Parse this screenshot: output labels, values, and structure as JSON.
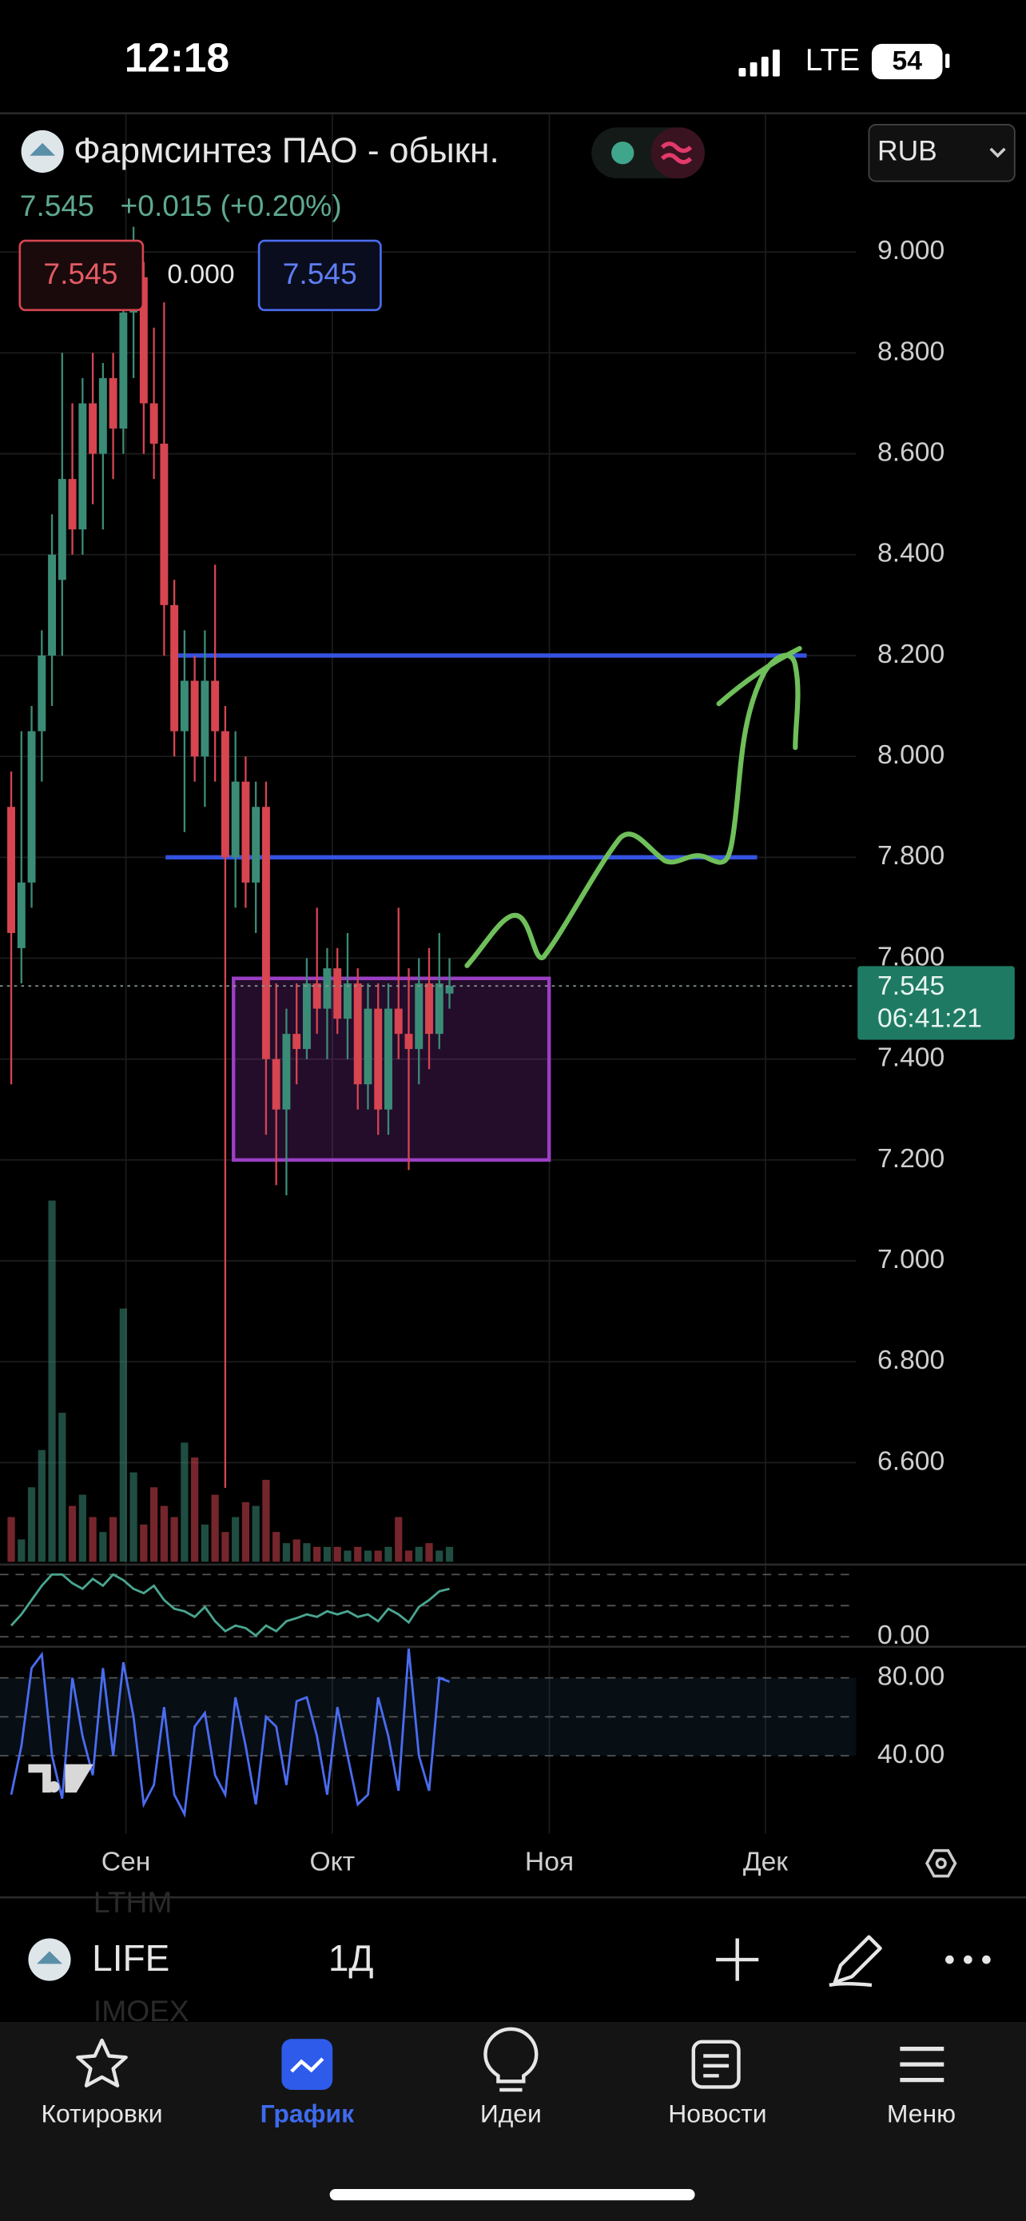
{
  "status_bar": {
    "time": "12:18",
    "network": "LTE",
    "battery": "54"
  },
  "header": {
    "title": "Фармсинтез ПАО - обыкн.",
    "currency": "RUB",
    "price": "7.545",
    "change": "+0.015 (+0.20%)",
    "bid": "7.545",
    "spread": "0.000",
    "ask": "7.545"
  },
  "chart_data": {
    "type": "candlestick",
    "x": [
      0,
      1,
      2,
      3,
      4,
      5,
      6,
      7,
      8,
      9,
      10,
      11,
      12,
      13,
      14,
      15,
      16,
      17,
      18,
      19,
      20,
      21,
      22,
      23,
      24,
      25,
      26,
      27,
      28,
      29,
      30,
      31,
      32,
      33,
      34,
      35,
      36,
      37,
      38,
      39,
      40,
      41,
      42,
      43
    ],
    "open": [
      7.9,
      7.62,
      7.75,
      8.05,
      8.2,
      8.35,
      8.55,
      8.45,
      8.7,
      8.6,
      8.75,
      8.65,
      8.88,
      8.95,
      8.7,
      8.62,
      8.3,
      8.05,
      8.15,
      8.0,
      8.15,
      8.05,
      7.8,
      7.95,
      7.75,
      7.9,
      7.4,
      7.3,
      7.45,
      7.42,
      7.55,
      7.5,
      7.58,
      7.48,
      7.55,
      7.35,
      7.5,
      7.3,
      7.5,
      7.45,
      7.42,
      7.55,
      7.45,
      7.53
    ],
    "high": [
      7.97,
      8.05,
      8.1,
      8.25,
      8.48,
      8.8,
      8.7,
      8.75,
      8.8,
      8.78,
      8.8,
      8.92,
      9.05,
      8.98,
      8.85,
      8.9,
      8.35,
      8.25,
      8.2,
      8.25,
      8.38,
      8.1,
      8.05,
      8.0,
      7.95,
      7.95,
      7.55,
      7.5,
      7.55,
      7.6,
      7.7,
      7.62,
      7.62,
      7.65,
      7.58,
      7.55,
      7.55,
      7.55,
      7.7,
      7.58,
      7.6,
      7.62,
      7.65,
      7.6
    ],
    "low": [
      7.35,
      7.55,
      7.7,
      7.95,
      8.1,
      8.2,
      8.4,
      8.4,
      8.5,
      8.45,
      8.55,
      8.6,
      8.75,
      8.6,
      8.55,
      8.2,
      8.0,
      7.85,
      7.95,
      7.9,
      7.95,
      6.55,
      7.7,
      7.7,
      7.65,
      7.25,
      7.15,
      7.13,
      7.35,
      7.4,
      7.45,
      7.4,
      7.45,
      7.4,
      7.3,
      7.3,
      7.25,
      7.25,
      7.4,
      7.18,
      7.35,
      7.38,
      7.42,
      7.5
    ],
    "close": [
      7.65,
      7.75,
      8.05,
      8.2,
      8.4,
      8.55,
      8.45,
      8.7,
      8.6,
      8.75,
      8.65,
      8.88,
      8.95,
      8.7,
      8.62,
      8.3,
      8.05,
      8.15,
      8.0,
      8.15,
      8.05,
      7.8,
      7.95,
      7.75,
      7.9,
      7.4,
      7.3,
      7.45,
      7.42,
      7.55,
      7.5,
      7.58,
      7.48,
      7.55,
      7.35,
      7.5,
      7.3,
      7.5,
      7.45,
      7.42,
      7.55,
      7.45,
      7.55,
      7.545
    ],
    "up_color": "#3b8c77",
    "down_color": "#d64550",
    "xlim": [
      -1.1,
      82.9
    ],
    "xticks": [
      {
        "value": 11.25,
        "label": "Сен"
      },
      {
        "value": 31.5,
        "label": "Окт"
      },
      {
        "value": 52.8,
        "label": "Ноя"
      },
      {
        "value": 74,
        "label": "Дек"
      }
    ],
    "ylim": [
      6.4035,
      9.275
    ],
    "yticks": [
      {
        "value": 6.6,
        "label": "6.600"
      },
      {
        "value": 6.8,
        "label": "6.800"
      },
      {
        "value": 7,
        "label": "7.000"
      },
      {
        "value": 7.2,
        "label": "7.200"
      },
      {
        "value": 7.4,
        "label": "7.400"
      },
      {
        "value": 7.6,
        "label": "7.600"
      },
      {
        "value": 7.8,
        "label": "7.800"
      },
      {
        "value": 8,
        "label": "8.000"
      },
      {
        "value": 8.2,
        "label": "8.200"
      },
      {
        "value": 8.4,
        "label": "8.400"
      },
      {
        "value": 8.6,
        "label": "8.600"
      },
      {
        "value": 8.8,
        "label": "8.800"
      },
      {
        "value": 9,
        "label": "9.000"
      }
    ],
    "grid": true,
    "last_price": {
      "value": 7.545,
      "label": "7.545"
    },
    "countdown": "06:41:21",
    "levels": [
      8.2,
      7.8
    ],
    "range_box": [
      7.2,
      7.56
    ],
    "volume": {
      "ylim": [
        0,
        100
      ],
      "values": [
        12,
        6,
        20,
        30,
        97,
        40,
        15,
        18,
        12,
        8,
        12,
        68,
        24,
        10,
        20,
        15,
        12,
        32,
        28,
        10,
        18,
        8,
        12,
        16,
        15,
        22,
        8,
        5,
        6,
        5,
        4,
        4,
        4,
        3,
        4,
        3,
        3,
        4,
        12,
        3,
        4,
        5,
        3,
        4
      ]
    },
    "oscillator_1": {
      "color": "#4aa590",
      "ylim": [
        0,
        1
      ],
      "yticks": [
        {
          "value": 0,
          "label": "0.00"
        }
      ],
      "values": [
        0.18,
        0.36,
        0.59,
        0.82,
        1.0,
        1.0,
        0.86,
        0.77,
        0.93,
        0.82,
        1.0,
        0.91,
        0.77,
        0.7,
        0.82,
        0.59,
        0.45,
        0.41,
        0.32,
        0.48,
        0.25,
        0.09,
        0.18,
        0.14,
        0.02,
        0.18,
        0.09,
        0.25,
        0.3,
        0.36,
        0.32,
        0.41,
        0.36,
        0.41,
        0.32,
        0.36,
        0.25,
        0.45,
        0.36,
        0.23,
        0.48,
        0.59,
        0.73,
        0.77
      ]
    },
    "oscillator_2": {
      "color": "#4a6cf0",
      "ylim": [
        0,
        100
      ],
      "yticks": [
        {
          "value": 80,
          "label": "80.00"
        },
        {
          "value": 40,
          "label": "40.00"
        }
      ],
      "values": [
        20,
        45,
        85,
        92,
        40,
        18,
        80,
        50,
        30,
        85,
        40,
        88,
        60,
        15,
        25,
        65,
        20,
        10,
        55,
        62,
        30,
        20,
        70,
        45,
        15,
        60,
        55,
        25,
        68,
        70,
        50,
        20,
        65,
        40,
        15,
        20,
        70,
        50,
        22,
        95,
        40,
        22,
        80,
        78
      ]
    }
  },
  "toolbar": {
    "symbol": "LIFE",
    "interval": "1Д",
    "ghost_above": "LTHM",
    "ghost_below": "IMOEX"
  },
  "tab_bar": {
    "tabs": [
      "Котировки",
      "График",
      "Идеи",
      "Новости",
      "Меню"
    ]
  }
}
